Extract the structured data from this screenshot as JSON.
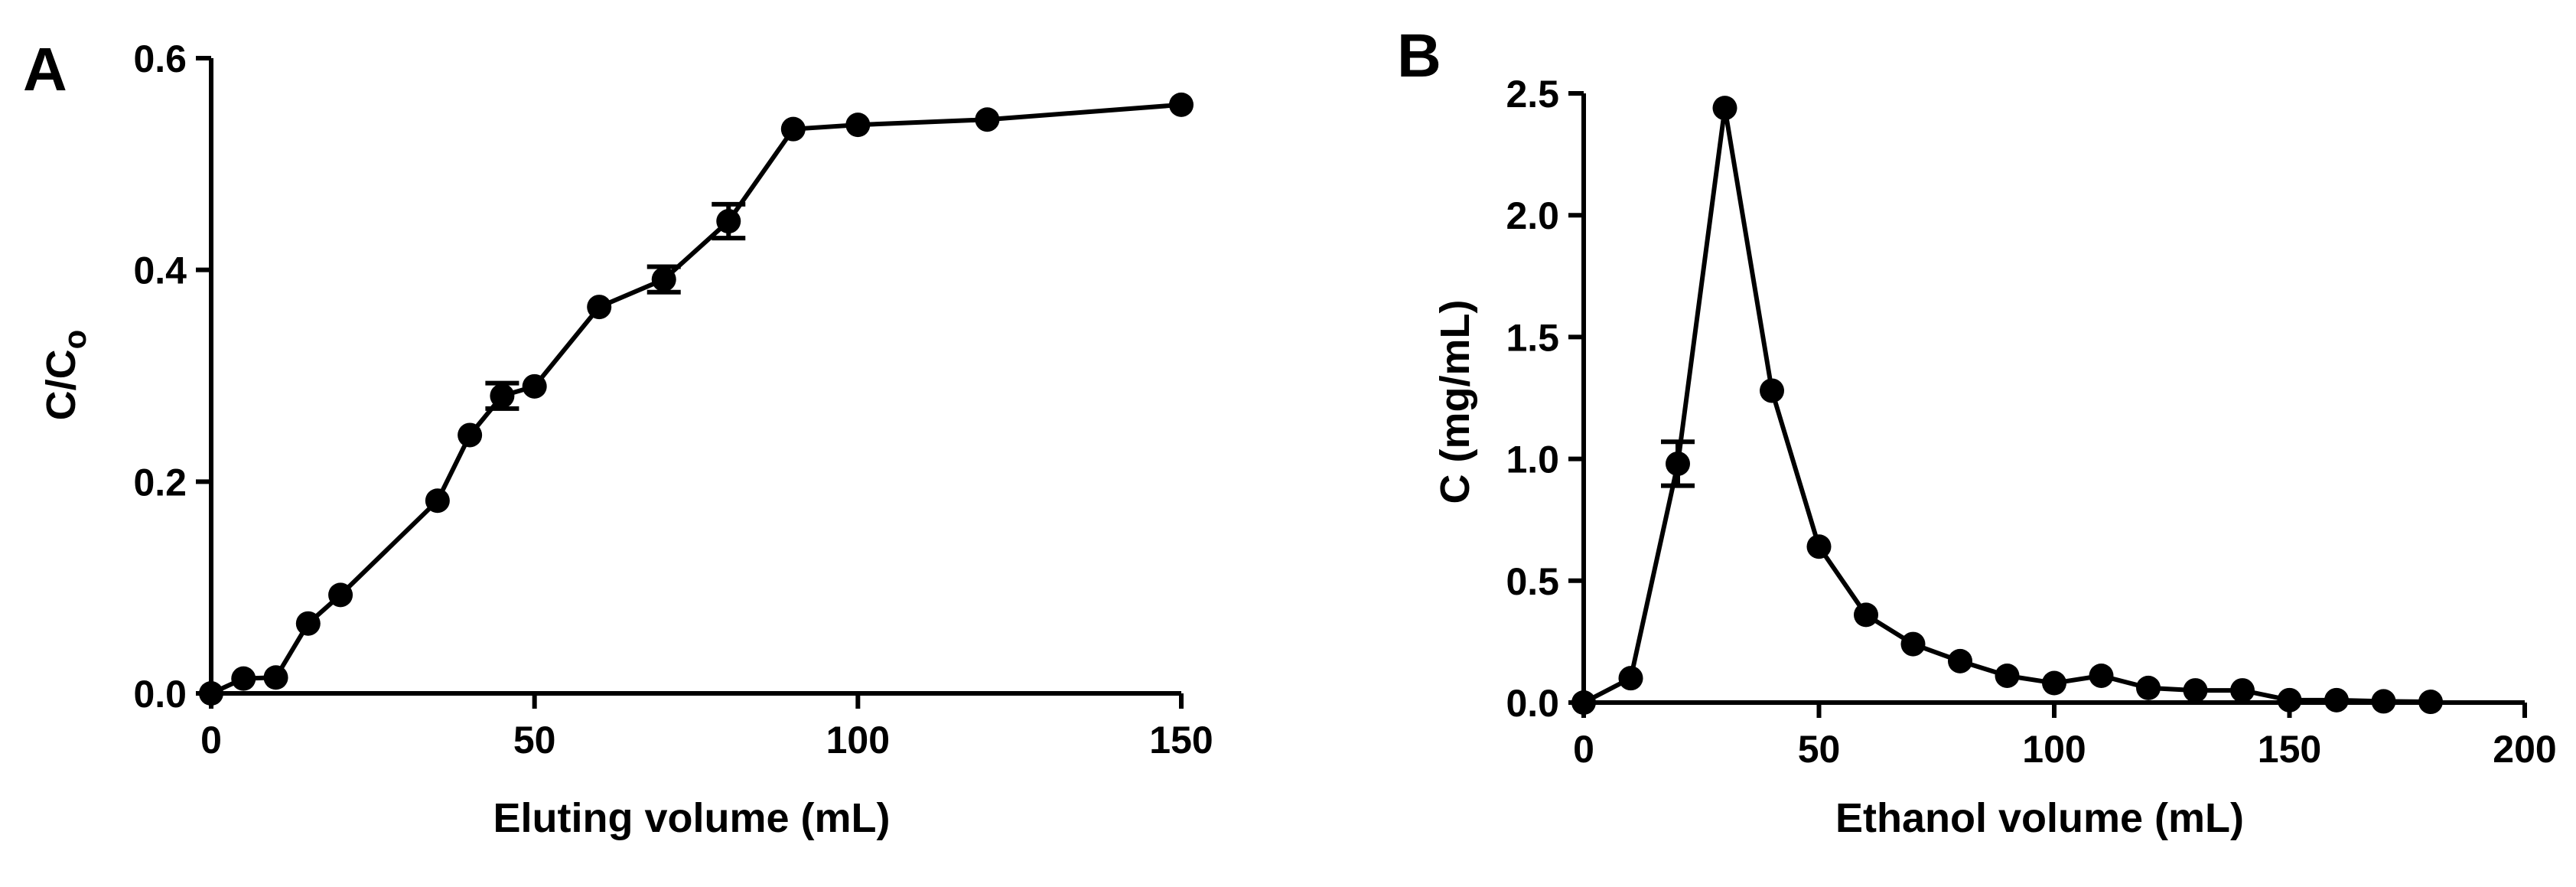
{
  "chart_data": [
    {
      "panel": "A",
      "type": "line",
      "title": "",
      "xlabel": "Eluting volume (mL)",
      "ylabel_main": "C/C",
      "ylabel_sub": "o",
      "xlim": [
        0,
        150
      ],
      "ylim": [
        0,
        0.6
      ],
      "xticks": [
        0,
        50,
        100,
        150
      ],
      "xtick_labels": [
        "0",
        "50",
        "100",
        "150"
      ],
      "yticks": [
        0,
        0.2,
        0.4,
        0.6
      ],
      "ytick_labels": [
        "0.0",
        "0.2",
        "0.4",
        "0.6"
      ],
      "grid": false,
      "series": [
        {
          "name": "C/Co",
          "x": [
            0,
            5,
            10,
            15,
            20,
            35,
            40,
            45,
            50,
            60,
            70,
            80,
            90,
            100,
            120,
            150
          ],
          "y": [
            0.0,
            0.014,
            0.015,
            0.066,
            0.093,
            0.182,
            0.244,
            0.281,
            0.29,
            0.365,
            0.391,
            0.446,
            0.533,
            0.537,
            0.542,
            0.556
          ],
          "err": [
            0,
            0,
            0,
            0,
            0,
            0,
            0,
            0.012,
            0,
            0,
            0.012,
            0.016,
            0,
            0,
            0,
            0
          ]
        }
      ]
    },
    {
      "panel": "B",
      "type": "line",
      "title": "",
      "xlabel": "Ethanol volume (mL)",
      "ylabel": "C (mg/mL)",
      "xlim": [
        0,
        200
      ],
      "ylim": [
        0,
        2.5
      ],
      "xticks": [
        0,
        50,
        100,
        150,
        200
      ],
      "xtick_labels": [
        "0",
        "50",
        "100",
        "150",
        "200"
      ],
      "yticks": [
        0,
        0.5,
        1.0,
        1.5,
        2.0,
        2.5
      ],
      "ytick_labels": [
        "0.0",
        "0.5",
        "1.0",
        "1.5",
        "2.0",
        "2.5"
      ],
      "grid": false,
      "series": [
        {
          "name": "C",
          "x": [
            0,
            10,
            20,
            30,
            40,
            50,
            60,
            70,
            80,
            90,
            100,
            110,
            120,
            130,
            140,
            150,
            160,
            170,
            180
          ],
          "y": [
            0.0,
            0.1,
            0.98,
            2.44,
            1.28,
            0.64,
            0.36,
            0.24,
            0.17,
            0.11,
            0.08,
            0.11,
            0.06,
            0.05,
            0.05,
            0.01,
            0.01,
            0.005,
            0.003
          ],
          "err": [
            0,
            0,
            0.09,
            0,
            0,
            0,
            0,
            0,
            0,
            0,
            0,
            0,
            0,
            0,
            0,
            0,
            0,
            0,
            0
          ]
        }
      ]
    }
  ]
}
